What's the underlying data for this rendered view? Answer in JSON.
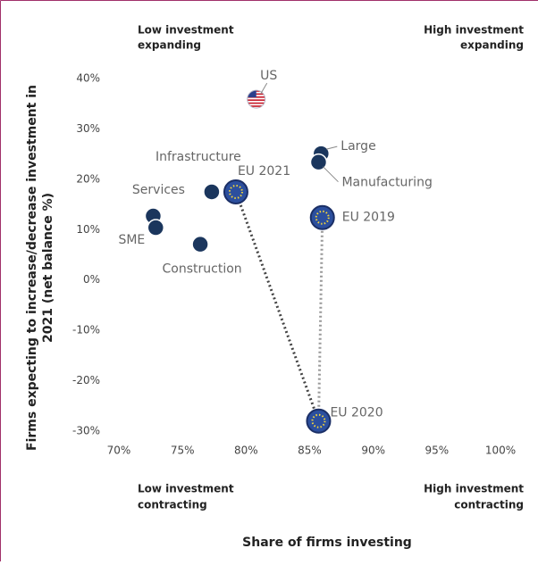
{
  "chart_data": {
    "type": "scatter",
    "ylabel": [
      "Firms expecting to increase/decrease investment in",
      "2021 (net balance %)"
    ],
    "xlabel": "Share of firms investing",
    "quadrants": {
      "top_left": [
        "Low investment",
        "expanding"
      ],
      "top_right": [
        "High investment",
        "expanding"
      ],
      "bottom_left": [
        "Low investment",
        "contracting"
      ],
      "bottom_right": [
        "High investment",
        "contracting"
      ]
    },
    "xlim": [
      70,
      100
    ],
    "ylim": [
      -30,
      40
    ],
    "xticks": [
      {
        "value": 70,
        "label": "70%"
      },
      {
        "value": 75,
        "label": "75%"
      },
      {
        "value": 80,
        "label": "80%"
      },
      {
        "value": 85,
        "label": "85%"
      },
      {
        "value": 90,
        "label": "90%"
      },
      {
        "value": 95,
        "label": "95%"
      },
      {
        "value": 100,
        "label": "100%"
      }
    ],
    "yticks": [
      {
        "value": -30,
        "label": "-30%"
      },
      {
        "value": -20,
        "label": "-20%"
      },
      {
        "value": -10,
        "label": "-10%"
      },
      {
        "value": 0,
        "label": "0%"
      },
      {
        "value": 10,
        "label": "10%"
      },
      {
        "value": 20,
        "label": "20%"
      },
      {
        "value": 30,
        "label": "30%"
      },
      {
        "value": 40,
        "label": "40%"
      }
    ],
    "color": "#1b365d",
    "points": [
      {
        "name": "US",
        "x": 80.8,
        "y": 35.9,
        "kind": "us"
      },
      {
        "name": "Large",
        "x": 85.9,
        "y": 25.1,
        "kind": "segment"
      },
      {
        "name": "Manufacturing",
        "x": 85.7,
        "y": 23.4,
        "kind": "segment"
      },
      {
        "name": "Infrastructure",
        "x": 77.3,
        "y": 17.5,
        "kind": "segment"
      },
      {
        "name": "EU 2021",
        "x": 79.2,
        "y": 17.5,
        "kind": "eu"
      },
      {
        "name": "Services",
        "x": 72.7,
        "y": 12.7,
        "kind": "segment"
      },
      {
        "name": "SME",
        "x": 72.9,
        "y": 10.4,
        "kind": "segment"
      },
      {
        "name": "EU 2019",
        "x": 86.0,
        "y": 12.4,
        "kind": "eu"
      },
      {
        "name": "Construction",
        "x": 76.4,
        "y": 7.1,
        "kind": "segment"
      },
      {
        "name": "EU 2020",
        "x": 85.7,
        "y": -28.0,
        "kind": "eu"
      }
    ]
  }
}
